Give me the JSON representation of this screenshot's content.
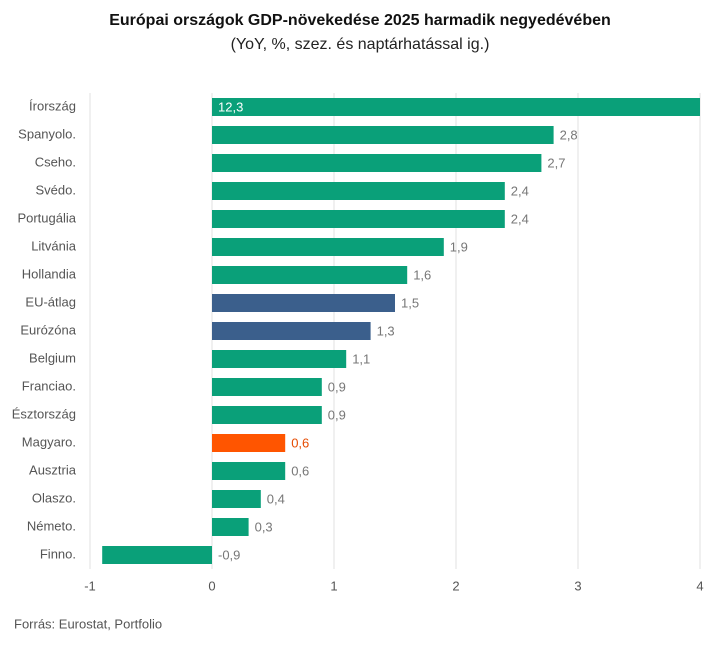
{
  "chart_data": {
    "type": "barh",
    "title": "Európai országok GDP-növekedése 2025 harmadik negyedévében",
    "subtitle": "(YoY, %, szez. és naptárhatással ig.)",
    "source": "Forrás: Eurostat, Portfolio",
    "categories": [
      "Írország",
      "Spanyolo.",
      "Cseho.",
      "Svédo.",
      "Portugália",
      "Litvánia",
      "Hollandia",
      "EU-átlag",
      "Eurózóna",
      "Belgium",
      "Franciao.",
      "Észtország",
      "Magyaro.",
      "Ausztria",
      "Olaszo.",
      "Németo.",
      "Finno."
    ],
    "values": [
      12.3,
      2.8,
      2.7,
      2.4,
      2.4,
      1.9,
      1.6,
      1.5,
      1.3,
      1.1,
      0.9,
      0.9,
      0.6,
      0.6,
      0.4,
      0.3,
      -0.9
    ],
    "value_labels": [
      "12,3",
      "2,8",
      "2,7",
      "2,4",
      "2,4",
      "1,9",
      "1,6",
      "1,5",
      "1,3",
      "1,1",
      "0,9",
      "0,9",
      "0,6",
      "0,6",
      "0,4",
      "0,3",
      "-0,9"
    ],
    "colors": [
      "#0aa079",
      "#0aa079",
      "#0aa079",
      "#0aa079",
      "#0aa079",
      "#0aa079",
      "#0aa079",
      "#3b5f8c",
      "#3b5f8c",
      "#0aa079",
      "#0aa079",
      "#0aa079",
      "#ff5500",
      "#0aa079",
      "#0aa079",
      "#0aa079",
      "#0aa079"
    ],
    "label_colors": [
      "#ffffff",
      "#777777",
      "#777777",
      "#777777",
      "#777777",
      "#777777",
      "#777777",
      "#777777",
      "#777777",
      "#777777",
      "#777777",
      "#777777",
      "#e64a00",
      "#777777",
      "#777777",
      "#777777",
      "#777777"
    ],
    "xlim": [
      -1,
      4
    ],
    "xticks": [
      -1,
      0,
      1,
      2,
      3,
      4
    ],
    "grid": true
  }
}
